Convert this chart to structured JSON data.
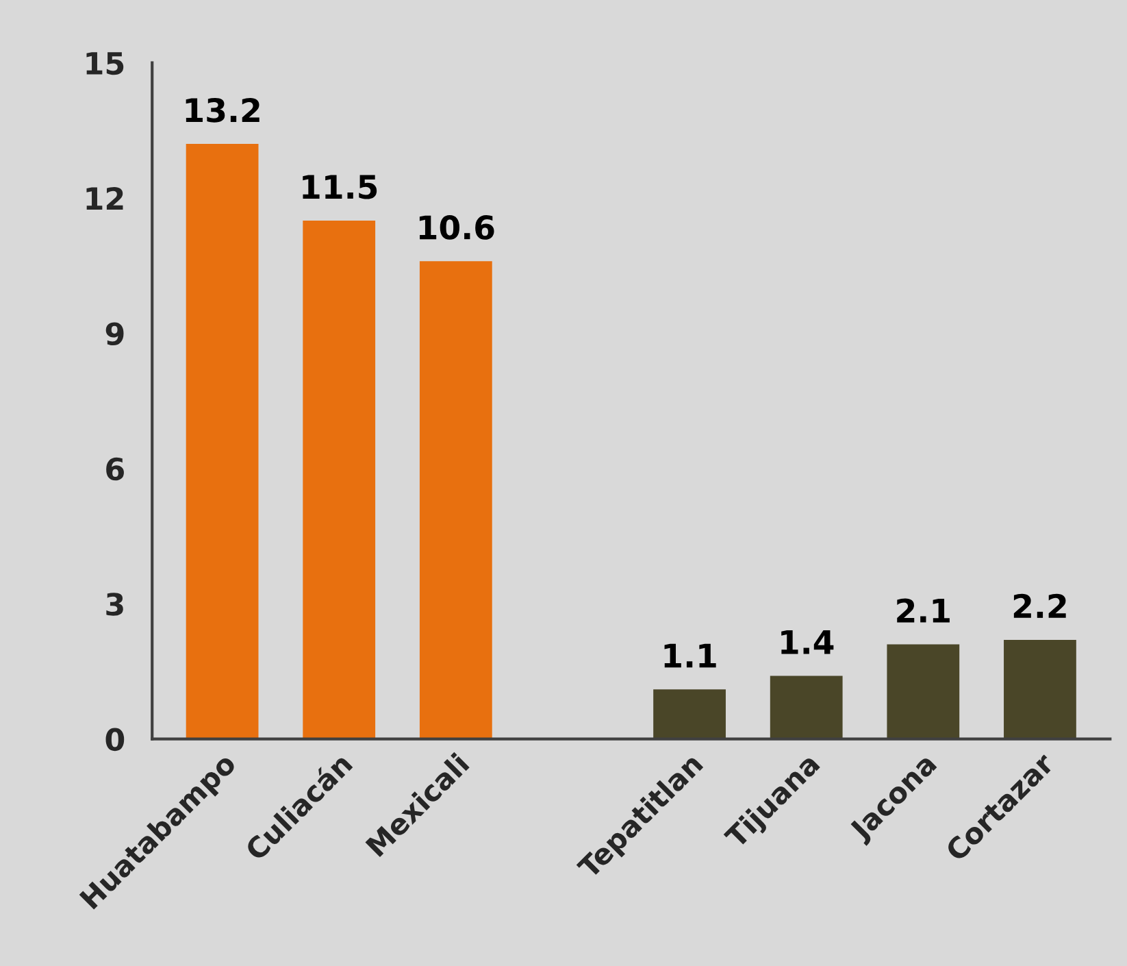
{
  "chart_data": {
    "type": "bar",
    "categories": [
      "Huatabampo",
      "Culiacán",
      "Mexicali",
      null,
      "Tepatitlan",
      "Tijuana",
      "Jacona",
      "Cortazar"
    ],
    "values": [
      13.2,
      11.5,
      10.6,
      null,
      1.1,
      1.4,
      2.1,
      2.2
    ],
    "colors": [
      "#e8700f",
      "#e8700f",
      "#e8700f",
      null,
      "#4a4628",
      "#4a4628",
      "#4a4628",
      "#4a4628"
    ],
    "ylim": [
      0,
      15
    ],
    "yticks": [
      0,
      3,
      6,
      9,
      12,
      15
    ],
    "data_labels": true,
    "grid": false,
    "legend": false
  }
}
